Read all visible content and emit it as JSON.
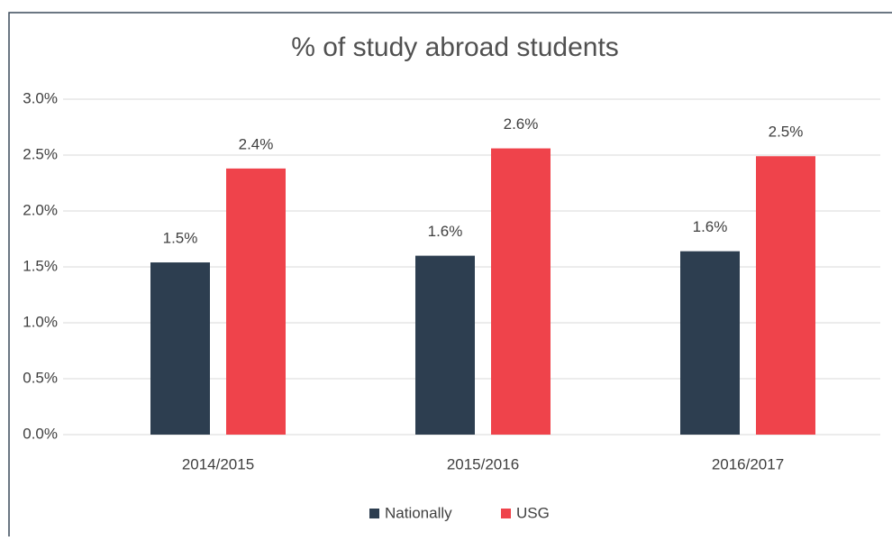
{
  "chart_data": {
    "type": "bar",
    "title": "% of study abroad students",
    "categories": [
      "2014/2015",
      "2015/2016",
      "2016/2017"
    ],
    "series": [
      {
        "name": "Nationally",
        "color": "#2d3e50",
        "values": [
          1.54,
          1.6,
          1.64
        ],
        "value_labels": [
          "1.5%",
          "1.6%",
          "1.6%"
        ]
      },
      {
        "name": "USG",
        "color": "#ef434b",
        "values": [
          2.38,
          2.56,
          2.49
        ],
        "value_labels": [
          "2.4%",
          "2.6%",
          "2.5%"
        ]
      }
    ],
    "ylim": [
      0,
      3
    ],
    "yticks": [
      {
        "value": 0,
        "label": "0.0%"
      },
      {
        "value": 0.5,
        "label": "0.5%"
      },
      {
        "value": 1,
        "label": "1.0%"
      },
      {
        "value": 1.5,
        "label": "1.5%"
      },
      {
        "value": 2,
        "label": "2.0%"
      },
      {
        "value": 2.5,
        "label": "2.5%"
      },
      {
        "value": 3,
        "label": "3.0%"
      }
    ],
    "grid": true,
    "legend": "bottom"
  }
}
